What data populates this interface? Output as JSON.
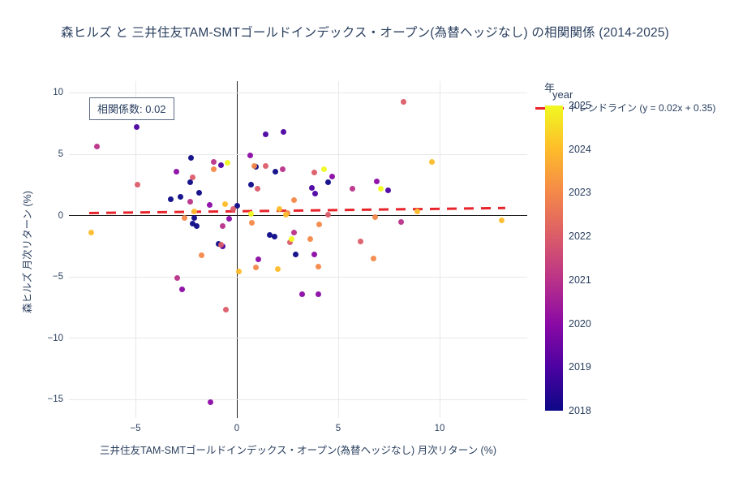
{
  "title": "森ヒルズ と 三井住友TAM-SMTゴールドインデックス・オープン(為替ヘッジなし) の相関関係 (2014-2025)",
  "annotation": {
    "label": "相関係数: 0.02"
  },
  "legend": {
    "trendline_label": "トレンドライン (y = 0.02x + 0.35)"
  },
  "colorbar": {
    "title_ja": "年",
    "title_en": "year",
    "ticks": [
      "2025",
      "2024",
      "2023",
      "2022",
      "2021",
      "2020",
      "2019",
      "2018"
    ]
  },
  "chart_data": {
    "type": "scatter",
    "title": "森ヒルズ と 三井住友TAM-SMTゴールドインデックス・オープン(為替ヘッジなし) の相関関係 (2014-2025)",
    "xlabel": "三井住友TAM-SMTゴールドインデックス・オープン(為替ヘッジなし) 月次リターン (%)",
    "ylabel": "森ヒルズ 月次リターン (%)",
    "xlim": [
      -8.28,
      14.32
    ],
    "ylim": [
      -16.52,
      10.96
    ],
    "xticks": [
      -5,
      0,
      5,
      10
    ],
    "yticks": [
      10,
      5,
      0,
      -5,
      -10,
      -15
    ],
    "grid": true,
    "legend_position": "top-right",
    "color_by": "year",
    "correlation": 0.02,
    "trendline": {
      "label": "トレンドライン (y = 0.02x + 0.35)",
      "slope": 0.02,
      "intercept": 0.35,
      "x_start": -7.3,
      "x_end": 13.2,
      "color": "#e8242b"
    },
    "series": [
      {
        "name": "2018",
        "color": "#0d0887",
        "points": [
          [
            -2.25,
            4.7
          ],
          [
            -2.3,
            2.7
          ],
          [
            -1.85,
            1.85
          ],
          [
            -3.25,
            1.35
          ],
          [
            -2.8,
            1.5
          ],
          [
            0.0,
            0.8
          ],
          [
            0.7,
            2.55
          ],
          [
            1.9,
            3.55
          ],
          [
            4.5,
            2.7
          ],
          [
            -2.1,
            -0.2
          ],
          [
            -2.2,
            -0.65
          ],
          [
            -2.0,
            -0.85
          ],
          [
            -0.9,
            -2.3
          ],
          [
            1.6,
            -1.6
          ],
          [
            1.85,
            -1.75
          ],
          [
            2.9,
            -3.2
          ],
          [
            0.95,
            3.95
          ]
        ]
      },
      {
        "name": "2019",
        "color": "#4c02a1",
        "points": [
          [
            -4.95,
            7.2
          ],
          [
            1.4,
            6.6
          ],
          [
            2.3,
            6.85
          ],
          [
            3.7,
            2.25
          ],
          [
            3.85,
            1.8
          ],
          [
            -0.7,
            -2.5
          ],
          [
            -0.8,
            4.1
          ],
          [
            7.45,
            2.05
          ]
        ]
      },
      {
        "name": "2020",
        "color": "#8b0aa5",
        "points": [
          [
            -3.0,
            3.6
          ],
          [
            4.7,
            3.2
          ],
          [
            -1.35,
            0.85
          ],
          [
            -0.4,
            -0.25
          ],
          [
            1.05,
            -3.55
          ],
          [
            3.2,
            -6.4
          ],
          [
            4.0,
            -6.4
          ],
          [
            -2.7,
            -6.0
          ],
          [
            -1.3,
            -15.2
          ],
          [
            3.8,
            -3.2
          ],
          [
            0.65,
            4.9
          ],
          [
            6.9,
            2.75
          ]
        ]
      },
      {
        "name": "2021",
        "color": "#b93289",
        "points": [
          [
            -6.9,
            5.6
          ],
          [
            -1.15,
            4.4
          ],
          [
            2.25,
            3.8
          ],
          [
            -2.3,
            1.15
          ],
          [
            2.8,
            -1.4
          ],
          [
            -2.95,
            -5.1
          ],
          [
            5.7,
            2.2
          ],
          [
            -0.7,
            -0.85
          ],
          [
            8.1,
            -0.5
          ]
        ]
      },
      {
        "name": "2022",
        "color": "#db5c68",
        "points": [
          [
            -2.2,
            3.1
          ],
          [
            -4.9,
            2.5
          ],
          [
            1.4,
            4.05
          ],
          [
            1.0,
            2.2
          ],
          [
            -0.2,
            0.5
          ],
          [
            4.5,
            0.1
          ],
          [
            2.6,
            -2.2
          ],
          [
            -0.8,
            -2.4
          ],
          [
            6.1,
            -2.1
          ],
          [
            -0.55,
            -7.7
          ],
          [
            8.2,
            9.3
          ],
          [
            3.8,
            3.5
          ]
        ]
      },
      {
        "name": "2023",
        "color": "#f48849",
        "points": [
          [
            -1.15,
            3.8
          ],
          [
            2.8,
            1.25
          ],
          [
            0.75,
            -0.6
          ],
          [
            -1.75,
            -3.25
          ],
          [
            0.95,
            -4.25
          ],
          [
            4.0,
            -4.2
          ],
          [
            6.75,
            -3.5
          ],
          [
            3.6,
            -1.9
          ],
          [
            -2.6,
            -0.2
          ],
          [
            2.5,
            0.2
          ],
          [
            4.05,
            -0.7
          ],
          [
            6.8,
            -0.1
          ],
          [
            0.85,
            4.05
          ]
        ]
      },
      {
        "name": "2024",
        "color": "#febc2a",
        "points": [
          [
            -0.6,
            0.95
          ],
          [
            -7.2,
            -1.4
          ],
          [
            9.6,
            4.4
          ],
          [
            8.9,
            0.35
          ],
          [
            13.05,
            -0.4
          ],
          [
            2.1,
            0.5
          ],
          [
            -2.1,
            0.3
          ],
          [
            2.0,
            -4.4
          ],
          [
            0.1,
            -4.6
          ],
          [
            2.4,
            0.05
          ]
        ]
      },
      {
        "name": "2025",
        "color": "#f0f921",
        "points": [
          [
            -0.45,
            4.3
          ],
          [
            4.3,
            3.8
          ],
          [
            7.1,
            2.2
          ],
          [
            0.7,
            0.15
          ],
          [
            2.7,
            -1.9
          ]
        ]
      }
    ]
  }
}
